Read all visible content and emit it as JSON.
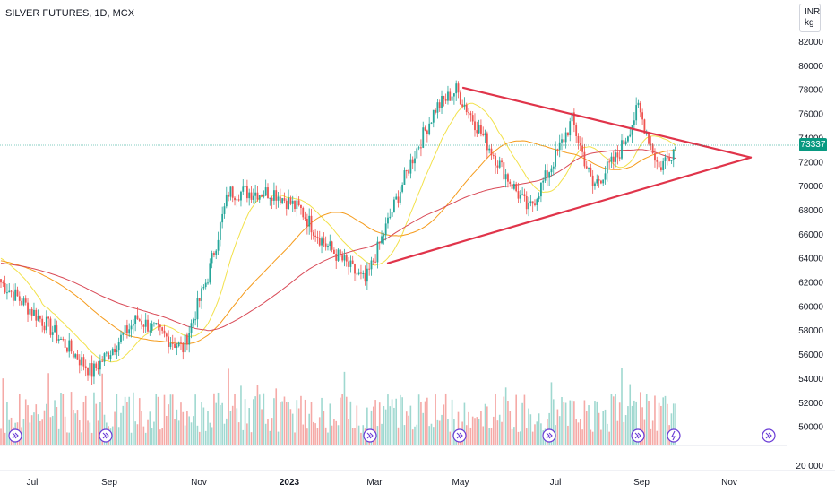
{
  "header": {
    "title": "SILVER FUTURES, 1D, MCX"
  },
  "units": {
    "currency": "INR",
    "unit": "kg"
  },
  "last_price_label": "73337",
  "colors": {
    "up": "#26a69a",
    "down": "#ef5350",
    "vol_up": "#9fd8d0",
    "vol_down": "#f5a9a6",
    "ma_fast": "#f2e14a",
    "ma_mid": "#f59b1b",
    "ma_slow": "#d94a57",
    "trendline": "#e0344a",
    "event": "#6a3cd6"
  },
  "chart_data": {
    "type": "candlestick",
    "title": "SILVER FUTURES, 1D, MCX",
    "y_axis": {
      "tick_labels": [
        "82000",
        "80000",
        "78000",
        "76000",
        "74000",
        "72000",
        "70000",
        "68000",
        "66000",
        "64000",
        "62000",
        "60000",
        "58000",
        "56000",
        "54000",
        "52000",
        "50000",
        "20 000"
      ],
      "last_price": 73337
    },
    "x_axis": {
      "tick_labels": [
        "Jul",
        "Sep",
        "Nov",
        "2023",
        "Mar",
        "May",
        "Jul",
        "Sep",
        "Nov"
      ]
    },
    "candles_ohlc_anchors": [
      {
        "t": "Jul",
        "close": 62000
      },
      {
        "t": "Aug",
        "close": 58500
      },
      {
        "t": "Sep",
        "close": 54500
      },
      {
        "t": "Oct",
        "close": 59000
      },
      {
        "t": "Nov",
        "close": 56500
      },
      {
        "t": "Nov-late",
        "close": 62500
      },
      {
        "t": "Dec",
        "close": 69500
      },
      {
        "t": "2023",
        "close": 69500
      },
      {
        "t": "Jan-late",
        "close": 68000
      },
      {
        "t": "Feb",
        "close": 65500
      },
      {
        "t": "Mar",
        "close": 62000
      },
      {
        "t": "Apr",
        "close": 72000
      },
      {
        "t": "Apr-late",
        "close": 76500
      },
      {
        "t": "May",
        "close": 78000
      },
      {
        "t": "Jun",
        "close": 71500
      },
      {
        "t": "Jun-late",
        "close": 68000
      },
      {
        "t": "Jul",
        "close": 71000
      },
      {
        "t": "Jul-late",
        "close": 75500
      },
      {
        "t": "Aug",
        "close": 70000
      },
      {
        "t": "Aug-late",
        "close": 72500
      },
      {
        "t": "Sep",
        "close": 76500
      },
      {
        "t": "Sep-mid",
        "close": 71500
      },
      {
        "t": "Sep-late",
        "close": 73337
      }
    ],
    "moving_averages": [
      {
        "name": "",
        "color": "yellow"
      },
      {
        "name": "",
        "color": "orange"
      },
      {
        "name": "",
        "color": "red"
      }
    ],
    "trendlines": [
      {
        "from": {
          "t": "May",
          "price": 78200
        },
        "to": {
          "t": "Nov",
          "price": 72400
        }
      },
      {
        "from": {
          "t": "Mar",
          "price": 63600
        },
        "to": {
          "t": "Nov",
          "price": 72400
        }
      }
    ],
    "volume": "histogram at bottom, colored by candle direction",
    "grid": false,
    "legend": "none"
  }
}
